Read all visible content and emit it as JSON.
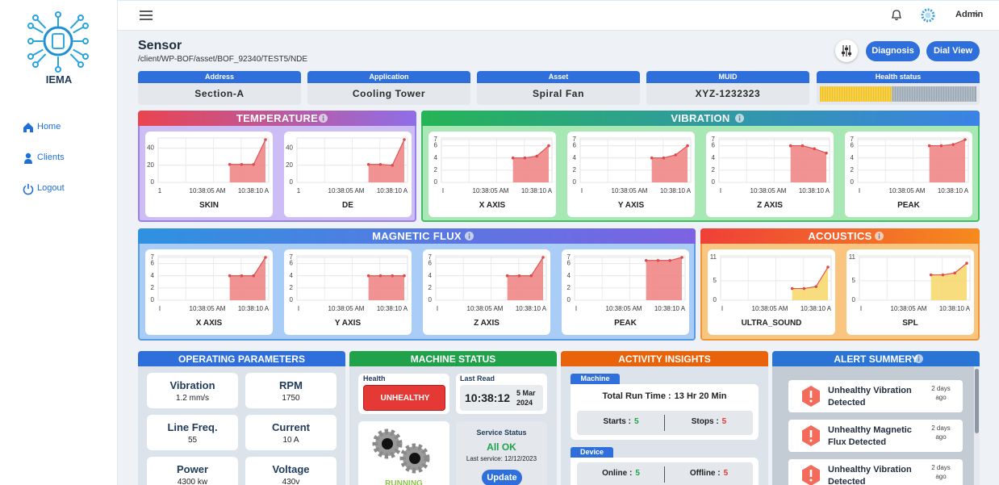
{
  "sidebar": {
    "brand": "IEMA",
    "nav": [
      "Home",
      "Clients",
      "Logout"
    ]
  },
  "topbar": {
    "user": "Admin"
  },
  "header": {
    "title": "Sensor",
    "path": "/client/WP-BOF/asset/BOF_92340/TEST5/NDE",
    "buttons": [
      "Diagnosis",
      "Dial View"
    ]
  },
  "info": [
    {
      "label": "Address",
      "value": "Section-A"
    },
    {
      "label": "Application",
      "value": "Cooling Tower"
    },
    {
      "label": "Asset",
      "value": "Spiral Fan"
    },
    {
      "label": "MUID",
      "value": "XYZ-1232323"
    }
  ],
  "health": {
    "label": "Health status",
    "level": 46,
    "lim": [
      0,
      100
    ]
  },
  "panels": [
    {
      "title": "TEMPERATURE",
      "color": "#f08080",
      "charts": [
        {
          "name": "SKIN",
          "ylim": [
            0,
            50
          ],
          "yticks": [
            0,
            20,
            40
          ],
          "x_labels": [
            "1",
            "10:38:05 AM",
            "10:38:10 A"
          ],
          "values": [
            null,
            null,
            null,
            null,
            null,
            null,
            21,
            21,
            21,
            50
          ]
        },
        {
          "name": "DE",
          "ylim": [
            0,
            50
          ],
          "yticks": [
            0,
            20,
            40
          ],
          "x_labels": [
            "1",
            "10:38:05 AM",
            "10:38:10 A"
          ],
          "values": [
            null,
            null,
            null,
            null,
            null,
            null,
            21,
            21,
            20,
            50
          ]
        }
      ]
    },
    {
      "title": "VIBRATION",
      "color": "#f08080",
      "charts": [
        {
          "name": "X AXIS",
          "ylim": [
            0,
            7
          ],
          "yticks": [
            0,
            2,
            4,
            6,
            7
          ],
          "x_labels": [
            "I",
            "10:38:05 AM",
            "10:38:10 A"
          ],
          "values": [
            null,
            null,
            null,
            null,
            null,
            null,
            4,
            4,
            4.3,
            6
          ]
        },
        {
          "name": "Y AXIS",
          "ylim": [
            0,
            7
          ],
          "yticks": [
            0,
            2,
            4,
            6,
            7
          ],
          "x_labels": [
            "I",
            "10:38:05 AM",
            "10:38:10 A"
          ],
          "values": [
            null,
            null,
            null,
            null,
            null,
            null,
            4,
            4,
            4.5,
            6
          ]
        },
        {
          "name": "Z AXIS",
          "ylim": [
            0,
            7
          ],
          "yticks": [
            0,
            2,
            4,
            6,
            7
          ],
          "x_labels": [
            "I",
            "10:38:05 AM",
            "10:38:10 A"
          ],
          "values": [
            null,
            null,
            null,
            null,
            null,
            null,
            6,
            6,
            5.5,
            4.8
          ]
        },
        {
          "name": "PEAK",
          "ylim": [
            0,
            7
          ],
          "yticks": [
            0,
            2,
            4,
            6,
            7
          ],
          "x_labels": [
            "I",
            "10:38:05 AM",
            "10:38:10 A"
          ],
          "values": [
            null,
            null,
            null,
            null,
            null,
            null,
            6,
            6,
            6.2,
            7
          ]
        }
      ]
    },
    {
      "title": "MAGNETIC FLUX",
      "color": "#f08080",
      "charts": [
        {
          "name": "X AXIS",
          "ylim": [
            0,
            7
          ],
          "yticks": [
            0,
            2,
            4,
            6,
            7
          ],
          "x_labels": [
            "I",
            "10:38:05 AM",
            "10:38:10 A"
          ],
          "values": [
            null,
            null,
            null,
            null,
            null,
            null,
            4,
            4,
            4,
            7
          ]
        },
        {
          "name": "Y AXIS",
          "ylim": [
            0,
            7
          ],
          "yticks": [
            0,
            2,
            4,
            6,
            7
          ],
          "x_labels": [
            "I",
            "10:38:05 AM",
            "10:38:10 A"
          ],
          "values": [
            null,
            null,
            null,
            null,
            null,
            null,
            4,
            4,
            4,
            4
          ]
        },
        {
          "name": "Z AXIS",
          "ylim": [
            0,
            7
          ],
          "yticks": [
            0,
            2,
            4,
            6,
            7
          ],
          "x_labels": [
            "I",
            "10:38:05 AM",
            "10:38:10 A"
          ],
          "values": [
            null,
            null,
            null,
            null,
            null,
            null,
            4,
            4,
            4,
            7
          ]
        },
        {
          "name": "PEAK",
          "ylim": [
            0,
            7
          ],
          "yticks": [
            0,
            2,
            4,
            6,
            7
          ],
          "x_labels": [
            "I",
            "10:38:05 AM",
            "10:38:10 A"
          ],
          "values": [
            null,
            null,
            null,
            null,
            null,
            null,
            6.5,
            6.5,
            6.5,
            7
          ]
        }
      ]
    },
    {
      "title": "ACOUSTICS",
      "color": "#f7d768",
      "charts": [
        {
          "name": "ULTRA_SOUND",
          "ylim": [
            0,
            11
          ],
          "yticks": [
            0,
            5,
            11
          ],
          "x_labels": [
            "I",
            "10:38:05 AM",
            "10:38:10 A"
          ],
          "values": [
            null,
            null,
            null,
            null,
            null,
            null,
            3,
            3,
            3.5,
            8.5
          ]
        },
        {
          "name": "SPL",
          "ylim": [
            0,
            11
          ],
          "yticks": [
            0,
            5,
            11
          ],
          "x_labels": [
            "I",
            "10:38:05 AM",
            "10:38:10 A"
          ],
          "values": [
            null,
            null,
            null,
            null,
            null,
            null,
            6.5,
            6.5,
            7,
            9.5
          ]
        }
      ]
    }
  ],
  "operating": {
    "title": "OPERATING PARAMETERS",
    "items": [
      {
        "label": "Vibration",
        "value": "1.2 mm/s"
      },
      {
        "label": "RPM",
        "value": "1750"
      },
      {
        "label": "Line Freq.",
        "value": "55"
      },
      {
        "label": "Current",
        "value": "10 A"
      },
      {
        "label": "Power",
        "value": "4300 kw"
      },
      {
        "label": "Voltage",
        "value": "430v"
      }
    ]
  },
  "machine": {
    "title": "MACHINE STATUS",
    "health_label": "Health",
    "health": "UNHEALTHY",
    "last_read_label": "Last Read",
    "time": "10:38:12",
    "date": "5 Mar 2024",
    "state": "RUNNING",
    "service_label": "Service Status",
    "service": "All OK",
    "last_service": "Last service: 12/12/2023",
    "button": "Update"
  },
  "activity": {
    "title": "ACTIVITY INSIGHTS",
    "machine": {
      "label": "Machine",
      "run_label": "Total Run Time :",
      "run_value": "13 Hr 20 Min",
      "stats": [
        {
          "label": "Starts :",
          "value": 5
        },
        {
          "label": "Stops :",
          "value": 5
        }
      ]
    },
    "device": {
      "label": "Device",
      "stats": [
        {
          "label": "Online :",
          "value": 5
        },
        {
          "label": "Offline :",
          "value": 5
        }
      ]
    }
  },
  "alerts": {
    "title": "ALERT SUMMERY",
    "items": [
      {
        "text": "Unhealthy Vibration Detected",
        "time": "2 days ago"
      },
      {
        "text": "Unhealthy Magnetic Flux Detected",
        "time": "2 days ago"
      },
      {
        "text": "Unhealthy Vibration Detected",
        "time": "2 days ago"
      }
    ]
  }
}
